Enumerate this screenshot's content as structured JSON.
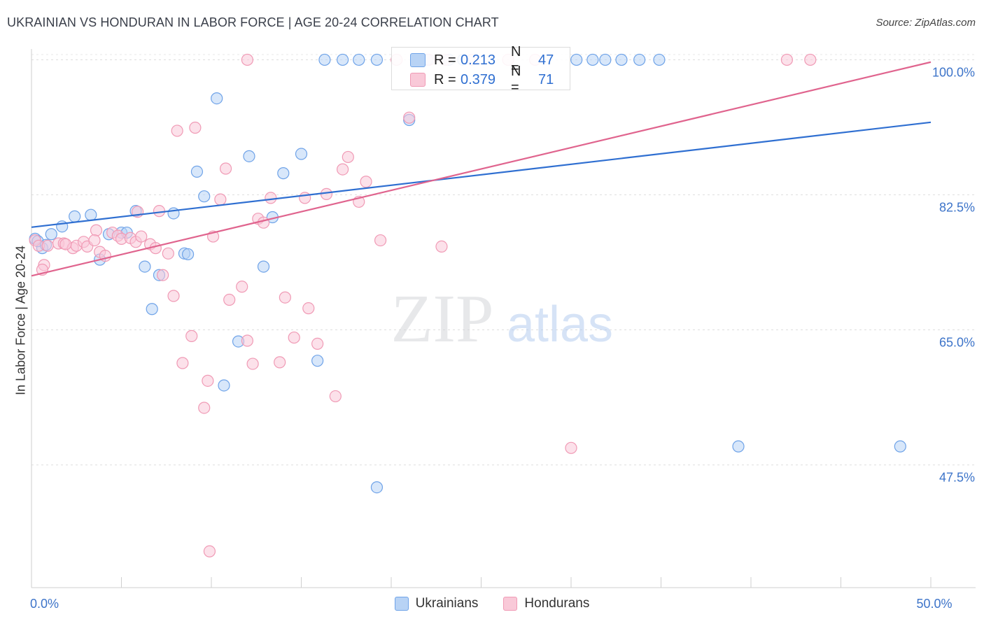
{
  "title": "UKRAINIAN VS HONDURAN IN LABOR FORCE | AGE 20-24 CORRELATION CHART",
  "source": "Source: ZipAtlas.com",
  "watermark": {
    "zip": "ZIP",
    "atlas": "atlas"
  },
  "stats_box": {
    "rows": [
      {
        "r_label": "R =",
        "r_value": "0.213",
        "n_label": "N =",
        "n_value": "47",
        "color": "#6fa3e8"
      },
      {
        "r_label": "R =",
        "r_value": "0.379",
        "n_label": "N =",
        "n_value": "71",
        "color": "#f09ab5"
      }
    ]
  },
  "legend": [
    {
      "label": "Ukrainians",
      "fill": "#b8d3f5",
      "stroke": "#6fa3e8"
    },
    {
      "label": "Hondurans",
      "fill": "#f9c9d8",
      "stroke": "#f09ab5"
    }
  ],
  "chart_data": {
    "type": "scatter",
    "title": "UKRAINIAN VS HONDURAN IN LABOR FORCE | AGE 20-24 CORRELATION CHART",
    "xlabel": "",
    "ylabel": "In Labor Force | Age 20-24",
    "xlim": [
      0,
      50
    ],
    "ylim": [
      31.6,
      101.4
    ],
    "x_tick_labels": [
      {
        "value": 0,
        "label": "0.0%"
      },
      {
        "value": 50,
        "label": "50.0%"
      }
    ],
    "x_minor_ticks": [
      0,
      5,
      10,
      15,
      20,
      25,
      30,
      35,
      40,
      45,
      50
    ],
    "y_ticks": [
      {
        "value": 100,
        "label": "100.0%"
      },
      {
        "value": 82.5,
        "label": "82.5%"
      },
      {
        "value": 65,
        "label": "65.0%"
      },
      {
        "value": 47.5,
        "label": "47.5%"
      }
    ],
    "grid": true,
    "legend_position": "bottom-center",
    "series": [
      {
        "name": "Ukrainians",
        "color": "#6fa3e8",
        "fill": "#b8d3f5",
        "line_color": "#2f6fd1",
        "trend": {
          "x": [
            0,
            50
          ],
          "y": [
            78.3,
            91.9
          ]
        },
        "points": [
          [
            0.2,
            76.8
          ],
          [
            0.6,
            75.6
          ],
          [
            1.1,
            77.4
          ],
          [
            1.7,
            78.4
          ],
          [
            2.4,
            79.7
          ],
          [
            3.3,
            79.9
          ],
          [
            3.8,
            74.1
          ],
          [
            4.3,
            77.4
          ],
          [
            5.0,
            77.6
          ],
          [
            5.3,
            77.6
          ],
          [
            5.8,
            80.4
          ],
          [
            6.3,
            73.2
          ],
          [
            6.7,
            67.7
          ],
          [
            7.1,
            72.1
          ],
          [
            7.9,
            80.1
          ],
          [
            8.5,
            74.9
          ],
          [
            8.7,
            74.8
          ],
          [
            9.2,
            85.5
          ],
          [
            9.6,
            82.3
          ],
          [
            10.3,
            95.0
          ],
          [
            10.7,
            57.8
          ],
          [
            11.5,
            63.5
          ],
          [
            12.1,
            87.5
          ],
          [
            12.9,
            73.2
          ],
          [
            13.4,
            79.6
          ],
          [
            14.0,
            85.3
          ],
          [
            15.0,
            87.8
          ],
          [
            15.9,
            61.0
          ],
          [
            16.3,
            100.0
          ],
          [
            17.3,
            100.0
          ],
          [
            18.2,
            100.0
          ],
          [
            19.2,
            100.0
          ],
          [
            21.0,
            92.2
          ],
          [
            22.0,
            100.0
          ],
          [
            23.2,
            100.0
          ],
          [
            24.0,
            100.0
          ],
          [
            30.3,
            100.0
          ],
          [
            31.2,
            100.0
          ],
          [
            31.9,
            100.0
          ],
          [
            32.8,
            100.0
          ],
          [
            33.8,
            100.0
          ],
          [
            34.9,
            100.0
          ],
          [
            19.2,
            44.6
          ],
          [
            39.3,
            49.9
          ],
          [
            48.3,
            49.9
          ],
          [
            0.35,
            76.5
          ],
          [
            0.8,
            76.0
          ]
        ]
      },
      {
        "name": "Hondurans",
        "color": "#f09ab5",
        "fill": "#f9c9d8",
        "line_color": "#e0648e",
        "trend": {
          "x": [
            0,
            50
          ],
          "y": [
            72.0,
            99.7
          ]
        },
        "points": [
          [
            0.2,
            76.6
          ],
          [
            0.4,
            75.9
          ],
          [
            0.7,
            73.4
          ],
          [
            0.9,
            75.9
          ],
          [
            1.5,
            76.2
          ],
          [
            1.8,
            76.2
          ],
          [
            2.3,
            75.6
          ],
          [
            2.5,
            75.9
          ],
          [
            2.9,
            76.4
          ],
          [
            3.1,
            75.8
          ],
          [
            3.6,
            77.9
          ],
          [
            3.8,
            75.1
          ],
          [
            4.1,
            74.6
          ],
          [
            4.5,
            77.6
          ],
          [
            4.8,
            77.2
          ],
          [
            5.0,
            76.8
          ],
          [
            5.5,
            76.9
          ],
          [
            5.8,
            76.4
          ],
          [
            5.9,
            80.3
          ],
          [
            6.1,
            77.1
          ],
          [
            6.6,
            76.1
          ],
          [
            6.9,
            75.6
          ],
          [
            7.1,
            80.4
          ],
          [
            7.3,
            72.1
          ],
          [
            7.6,
            74.9
          ],
          [
            7.9,
            69.4
          ],
          [
            8.1,
            90.8
          ],
          [
            8.4,
            60.7
          ],
          [
            8.9,
            64.2
          ],
          [
            9.1,
            91.2
          ],
          [
            9.6,
            54.9
          ],
          [
            9.8,
            58.4
          ],
          [
            10.1,
            77.1
          ],
          [
            10.5,
            81.9
          ],
          [
            10.8,
            85.9
          ],
          [
            11.0,
            68.9
          ],
          [
            11.7,
            70.6
          ],
          [
            12.0,
            63.6
          ],
          [
            12.6,
            79.4
          ],
          [
            12.9,
            78.9
          ],
          [
            13.3,
            82.1
          ],
          [
            13.8,
            60.8
          ],
          [
            14.1,
            69.2
          ],
          [
            14.6,
            64.0
          ],
          [
            15.2,
            82.1
          ],
          [
            15.4,
            67.8
          ],
          [
            15.9,
            63.2
          ],
          [
            16.4,
            82.6
          ],
          [
            16.9,
            56.4
          ],
          [
            17.3,
            85.8
          ],
          [
            17.6,
            87.4
          ],
          [
            18.2,
            81.6
          ],
          [
            18.6,
            84.2
          ],
          [
            19.4,
            76.6
          ],
          [
            21.0,
            92.5
          ],
          [
            22.8,
            75.8
          ],
          [
            9.9,
            36.3
          ],
          [
            12.3,
            60.6
          ],
          [
            30.0,
            49.7
          ],
          [
            12.0,
            100.0
          ],
          [
            20.3,
            100.0
          ],
          [
            22.1,
            100.0
          ],
          [
            23.0,
            100.0
          ],
          [
            24.5,
            100.0
          ],
          [
            26.5,
            100.0
          ],
          [
            28.0,
            100.0
          ],
          [
            42.0,
            100.0
          ],
          [
            43.3,
            100.0
          ],
          [
            0.6,
            72.8
          ],
          [
            1.9,
            76.1
          ],
          [
            3.5,
            76.6
          ]
        ]
      }
    ]
  }
}
